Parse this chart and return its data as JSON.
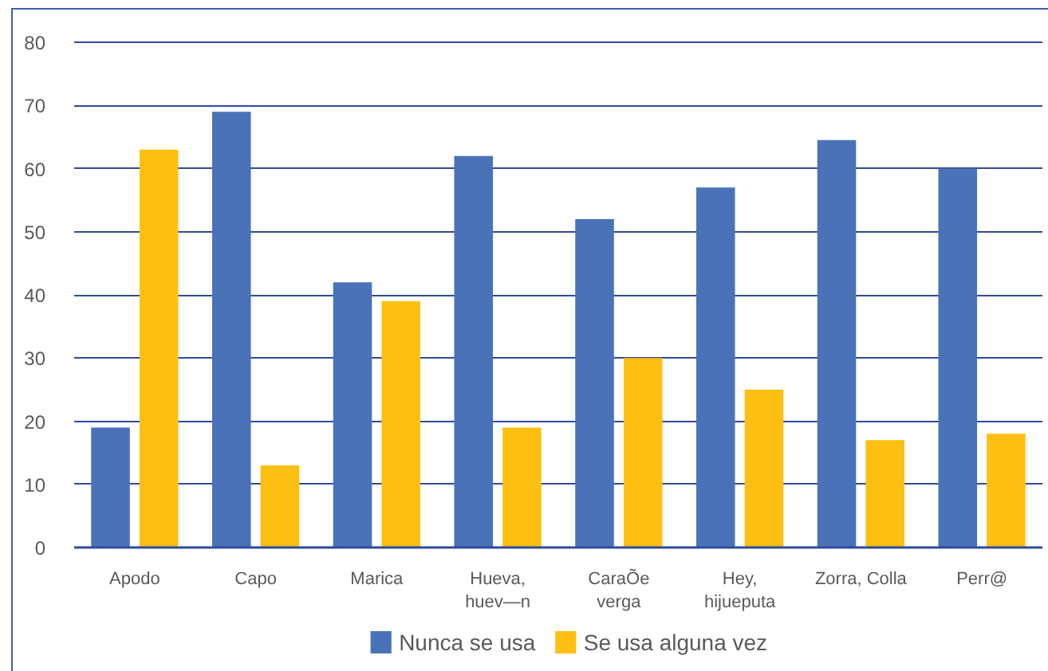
{
  "chart_data": {
    "type": "bar",
    "categories": [
      "Apodo",
      "Capo",
      "Marica",
      "Hueva, huev—n",
      "CaraÕe verga",
      "Hey, hijueputa",
      "Zorra, Colla",
      "Perr@"
    ],
    "series": [
      {
        "name": "Nunca se usa",
        "color": "#4a72b8",
        "values": [
          19,
          69,
          42,
          62,
          52,
          57,
          64.5,
          60
        ]
      },
      {
        "name": "Se usa alguna vez",
        "color": "#fdbf11",
        "values": [
          63,
          13,
          39,
          19,
          30,
          25,
          17,
          18
        ]
      }
    ],
    "ylim": [
      0,
      80
    ],
    "yticks": [
      0,
      10,
      20,
      30,
      40,
      50,
      60,
      70,
      80
    ],
    "grid": "y",
    "legend": "bottom"
  }
}
